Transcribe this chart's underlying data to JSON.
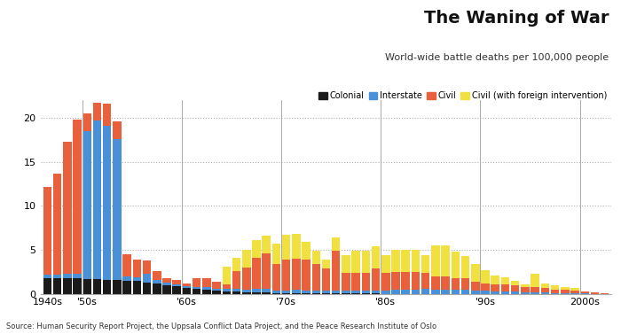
{
  "title": "The Waning of War",
  "subtitle": "World-wide battle deaths per 100,000 people",
  "source": "Source: Human Security Report Project, the Uppsala Conflict Data Project, and the Peace Research Institute of Oslo",
  "colors": {
    "colonial": "#1a1a1a",
    "interstate": "#4a90d9",
    "civil": "#e8603c",
    "civil_foreign": "#f0e040"
  },
  "years": [
    1946,
    1947,
    1948,
    1949,
    1950,
    1951,
    1952,
    1953,
    1954,
    1955,
    1956,
    1957,
    1958,
    1959,
    1960,
    1961,
    1962,
    1963,
    1964,
    1965,
    1966,
    1967,
    1968,
    1969,
    1970,
    1971,
    1972,
    1973,
    1974,
    1975,
    1976,
    1977,
    1978,
    1979,
    1980,
    1981,
    1982,
    1983,
    1984,
    1985,
    1986,
    1987,
    1988,
    1989,
    1990,
    1991,
    1992,
    1993,
    1994,
    1995,
    1996,
    1997,
    1998,
    1999,
    2000,
    2001,
    2002
  ],
  "colonial": [
    1.8,
    1.8,
    1.8,
    1.8,
    1.7,
    1.7,
    1.6,
    1.6,
    1.5,
    1.5,
    1.3,
    1.2,
    1.0,
    0.9,
    0.7,
    0.6,
    0.5,
    0.4,
    0.3,
    0.3,
    0.2,
    0.2,
    0.2,
    0.1,
    0.1,
    0.1,
    0.1,
    0.1,
    0.1,
    0.1,
    0.1,
    0.1,
    0.1,
    0.1,
    0.0,
    0.0,
    0.0,
    0.0,
    0.0,
    0.0,
    0.0,
    0.0,
    0.0,
    0.0,
    0.0,
    0.0,
    0.0,
    0.0,
    0.0,
    0.0,
    0.0,
    0.0,
    0.0,
    0.0,
    0.0,
    0.0,
    0.0
  ],
  "interstate": [
    0.4,
    0.4,
    0.5,
    0.5,
    16.8,
    18.0,
    17.5,
    16.0,
    0.5,
    0.4,
    1.0,
    0.4,
    0.3,
    0.2,
    0.2,
    0.2,
    0.3,
    0.2,
    0.3,
    0.3,
    0.3,
    0.4,
    0.4,
    0.3,
    0.3,
    0.4,
    0.3,
    0.3,
    0.3,
    0.3,
    0.3,
    0.3,
    0.3,
    0.3,
    0.4,
    0.5,
    0.5,
    0.5,
    0.6,
    0.5,
    0.5,
    0.5,
    0.5,
    0.4,
    0.4,
    0.3,
    0.3,
    0.3,
    0.2,
    0.2,
    0.2,
    0.1,
    0.1,
    0.1,
    0.1,
    0.0,
    0.0
  ],
  "civil": [
    10.0,
    11.5,
    15.0,
    17.5,
    2.0,
    2.0,
    2.5,
    2.0,
    2.5,
    2.0,
    1.5,
    1.0,
    0.5,
    0.5,
    0.3,
    1.0,
    1.0,
    0.8,
    0.5,
    2.0,
    2.5,
    3.5,
    4.0,
    3.0,
    3.5,
    3.5,
    3.5,
    3.0,
    2.5,
    4.5,
    2.0,
    2.0,
    2.0,
    2.5,
    2.0,
    2.0,
    2.0,
    2.0,
    1.8,
    1.5,
    1.5,
    1.3,
    1.3,
    1.0,
    0.8,
    0.8,
    0.8,
    0.7,
    0.6,
    0.6,
    0.5,
    0.4,
    0.4,
    0.3,
    0.2,
    0.15,
    0.1
  ],
  "civil_foreign": [
    0.0,
    0.0,
    0.0,
    0.0,
    0.0,
    0.0,
    0.0,
    0.0,
    0.0,
    0.0,
    0.0,
    0.0,
    0.0,
    0.0,
    0.0,
    0.0,
    0.0,
    0.0,
    2.0,
    1.5,
    2.0,
    2.0,
    2.0,
    2.3,
    2.8,
    2.8,
    2.0,
    1.5,
    1.0,
    1.5,
    2.0,
    2.5,
    2.5,
    2.5,
    2.0,
    2.5,
    2.5,
    2.5,
    2.0,
    3.5,
    3.5,
    3.0,
    2.5,
    2.0,
    1.5,
    1.0,
    0.8,
    0.5,
    0.3,
    1.5,
    0.5,
    0.5,
    0.3,
    0.3,
    0.0,
    0.0,
    0.0
  ],
  "yticks": [
    0,
    5,
    10,
    15,
    20
  ],
  "ylim": [
    0,
    22
  ],
  "bg_color": "#ffffff",
  "grid_color": "#999999",
  "decade_dividers": [
    1950,
    1960,
    1970,
    1980,
    1990,
    2000
  ],
  "decade_tick_years": [
    1946,
    1950,
    1960,
    1970,
    1980,
    1990,
    2000
  ],
  "decade_labels": [
    "1940s",
    "'50s",
    "'60s",
    "'70s",
    "'80s",
    "'90s",
    "2000s"
  ]
}
